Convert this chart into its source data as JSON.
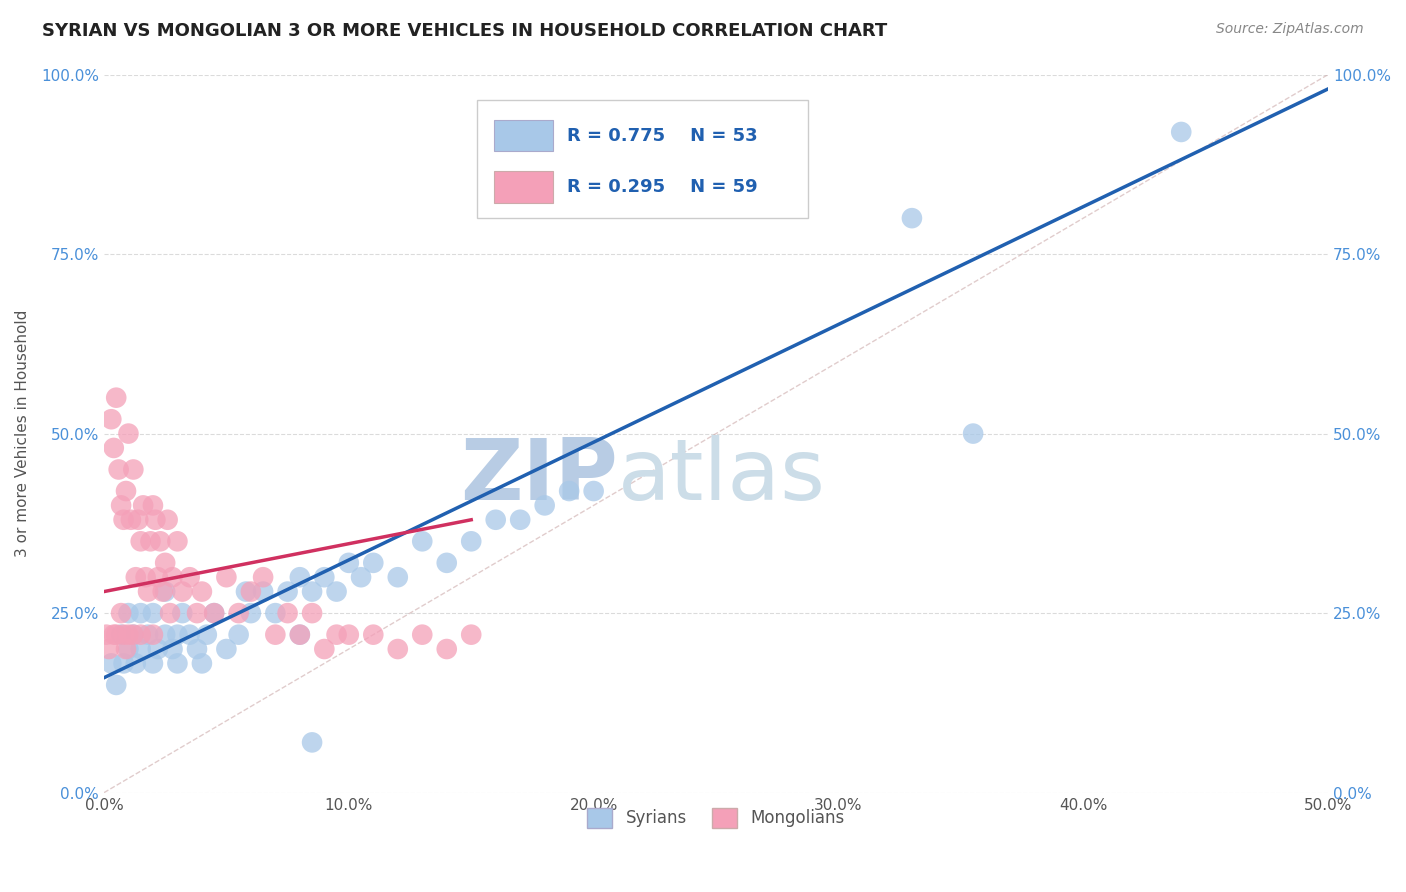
{
  "title": "SYRIAN VS MONGOLIAN 3 OR MORE VEHICLES IN HOUSEHOLD CORRELATION CHART",
  "source_text": "Source: ZipAtlas.com",
  "ylabel": "3 or more Vehicles in Household",
  "xlim": [
    0.0,
    50.0
  ],
  "ylim": [
    0.0,
    100.0
  ],
  "syrians_R": 0.775,
  "syrians_N": 53,
  "mongolians_R": 0.295,
  "mongolians_N": 59,
  "syrian_color": "#a8c8e8",
  "mongolian_color": "#f4a0b8",
  "syrian_line_color": "#2060b0",
  "mongolian_line_color": "#d03060",
  "watermark_color": "#ccddf0",
  "background_color": "#ffffff",
  "grid_color": "#cccccc",
  "syrian_x": [
    0.3,
    0.5,
    0.7,
    0.8,
    1.0,
    1.0,
    1.2,
    1.3,
    1.5,
    1.5,
    1.8,
    2.0,
    2.0,
    2.2,
    2.5,
    2.5,
    2.8,
    3.0,
    3.0,
    3.2,
    3.5,
    3.8,
    4.0,
    4.2,
    4.5,
    5.0,
    5.5,
    5.8,
    6.0,
    6.5,
    7.0,
    7.5,
    8.0,
    8.0,
    8.5,
    9.0,
    9.5,
    10.0,
    10.5,
    11.0,
    12.0,
    13.0,
    14.0,
    15.0,
    16.0,
    17.0,
    18.0,
    19.0,
    20.0,
    33.0,
    35.5,
    44.0,
    8.5
  ],
  "syrian_y": [
    18.0,
    15.0,
    22.0,
    18.0,
    20.0,
    25.0,
    22.0,
    18.0,
    20.0,
    25.0,
    22.0,
    18.0,
    25.0,
    20.0,
    22.0,
    28.0,
    20.0,
    22.0,
    18.0,
    25.0,
    22.0,
    20.0,
    18.0,
    22.0,
    25.0,
    20.0,
    22.0,
    28.0,
    25.0,
    28.0,
    25.0,
    28.0,
    22.0,
    30.0,
    28.0,
    30.0,
    28.0,
    32.0,
    30.0,
    32.0,
    30.0,
    35.0,
    32.0,
    35.0,
    38.0,
    38.0,
    40.0,
    42.0,
    42.0,
    80.0,
    50.0,
    92.0,
    7.0
  ],
  "mongolian_x": [
    0.1,
    0.2,
    0.3,
    0.4,
    0.4,
    0.5,
    0.5,
    0.6,
    0.7,
    0.7,
    0.8,
    0.8,
    0.9,
    0.9,
    1.0,
    1.0,
    1.1,
    1.2,
    1.2,
    1.3,
    1.4,
    1.5,
    1.5,
    1.6,
    1.7,
    1.8,
    1.9,
    2.0,
    2.0,
    2.1,
    2.2,
    2.3,
    2.4,
    2.5,
    2.6,
    2.7,
    2.8,
    3.0,
    3.2,
    3.5,
    3.8,
    4.0,
    4.5,
    5.0,
    5.5,
    6.0,
    6.5,
    7.0,
    7.5,
    8.0,
    8.5,
    9.0,
    9.5,
    10.0,
    11.0,
    12.0,
    13.0,
    14.0,
    15.0
  ],
  "mongolian_y": [
    22.0,
    20.0,
    52.0,
    48.0,
    22.0,
    55.0,
    22.0,
    45.0,
    40.0,
    25.0,
    38.0,
    22.0,
    42.0,
    20.0,
    50.0,
    22.0,
    38.0,
    45.0,
    22.0,
    30.0,
    38.0,
    35.0,
    22.0,
    40.0,
    30.0,
    28.0,
    35.0,
    40.0,
    22.0,
    38.0,
    30.0,
    35.0,
    28.0,
    32.0,
    38.0,
    25.0,
    30.0,
    35.0,
    28.0,
    30.0,
    25.0,
    28.0,
    25.0,
    30.0,
    25.0,
    28.0,
    30.0,
    22.0,
    25.0,
    22.0,
    25.0,
    20.0,
    22.0,
    22.0,
    22.0,
    20.0,
    22.0,
    20.0,
    22.0
  ]
}
